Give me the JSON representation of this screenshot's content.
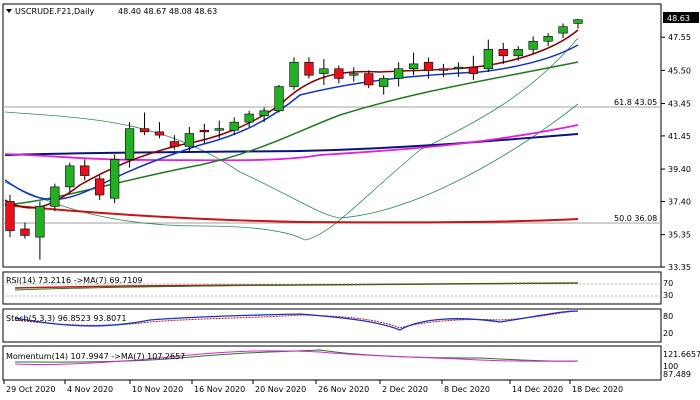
{
  "header": {
    "symbol_label": "USCRUDE.F21,Daily",
    "ohlc_values": "48.40 48.67 48.08 48.63",
    "collapse_icon": "triangle-down-icon"
  },
  "main_panel": {
    "price_badge": "48.63",
    "fib_high": "61.8 43.05",
    "fib_mid": "50.0 36.08"
  },
  "rsi_panel": {
    "label": "RSI(14) 73.2116  ->MA(7) 69.7109"
  },
  "stoch_panel": {
    "label": "Stoch(5,3,3) 96.8523 93.8071"
  },
  "momentum_panel": {
    "label": "Momentum(14) 107.9947  ->MA(7) 107.2657"
  },
  "colors": {
    "bull_candle": "#22b022",
    "bear_candle": "#e8101a",
    "ma_fast": "#8b0000",
    "ma_mid": "#1432c8",
    "ma_slow": "#1e7a1e",
    "ma_magenta": "#e020e0",
    "ma_navy": "#0a1478",
    "ma_red_long": "#c81414",
    "bollinger": "#2e8b57"
  },
  "chart_data": {
    "type": "candlestick",
    "title": "USCRUDE.F21,Daily",
    "x_tick_labels": [
      "29 Oct 2020",
      "4 Nov 2020",
      "10 Nov 2020",
      "16 Nov 2020",
      "20 Nov 2020",
      "26 Nov 2020",
      "2 Dec 2020",
      "8 Dec 2020",
      "14 Dec 2020",
      "18 Dec 2020"
    ],
    "y_tick_labels": [
      "48.63",
      "47.55",
      "45.50",
      "43.45",
      "41.45",
      "39.40",
      "37.40",
      "35.35",
      "33.35"
    ],
    "ylim": [
      33.35,
      49.6
    ],
    "candles": [
      {
        "o": 37.4,
        "h": 37.8,
        "l": 35.2,
        "c": 35.6
      },
      {
        "o": 35.7,
        "h": 36.1,
        "l": 35.1,
        "c": 35.3
      },
      {
        "o": 35.2,
        "h": 37.4,
        "l": 33.8,
        "c": 37.1
      },
      {
        "o": 37.1,
        "h": 38.5,
        "l": 36.8,
        "c": 38.3
      },
      {
        "o": 38.3,
        "h": 39.8,
        "l": 38.0,
        "c": 39.6
      },
      {
        "o": 39.6,
        "h": 40.0,
        "l": 38.7,
        "c": 39.0
      },
      {
        "o": 38.8,
        "h": 39.0,
        "l": 37.5,
        "c": 37.8
      },
      {
        "o": 37.6,
        "h": 40.3,
        "l": 37.3,
        "c": 40.0
      },
      {
        "o": 40.0,
        "h": 42.3,
        "l": 39.5,
        "c": 41.9
      },
      {
        "o": 41.9,
        "h": 42.9,
        "l": 41.5,
        "c": 41.7
      },
      {
        "o": 41.7,
        "h": 42.3,
        "l": 41.3,
        "c": 41.5
      },
      {
        "o": 41.1,
        "h": 41.5,
        "l": 40.6,
        "c": 40.8
      },
      {
        "o": 40.8,
        "h": 42.0,
        "l": 40.5,
        "c": 41.6
      },
      {
        "o": 41.8,
        "h": 42.2,
        "l": 41.0,
        "c": 41.7
      },
      {
        "o": 41.8,
        "h": 42.4,
        "l": 41.3,
        "c": 41.9
      },
      {
        "o": 41.8,
        "h": 42.6,
        "l": 41.5,
        "c": 42.3
      },
      {
        "o": 42.3,
        "h": 43.0,
        "l": 42.0,
        "c": 42.8
      },
      {
        "o": 42.7,
        "h": 43.2,
        "l": 42.3,
        "c": 43.0
      },
      {
        "o": 43.0,
        "h": 44.6,
        "l": 42.9,
        "c": 44.5
      },
      {
        "o": 44.5,
        "h": 46.3,
        "l": 44.3,
        "c": 46.0
      },
      {
        "o": 46.0,
        "h": 46.3,
        "l": 45.0,
        "c": 45.2
      },
      {
        "o": 45.3,
        "h": 46.2,
        "l": 44.6,
        "c": 45.6
      },
      {
        "o": 45.6,
        "h": 45.8,
        "l": 44.7,
        "c": 45.0
      },
      {
        "o": 45.2,
        "h": 45.7,
        "l": 44.8,
        "c": 45.3
      },
      {
        "o": 45.3,
        "h": 45.5,
        "l": 44.4,
        "c": 44.6
      },
      {
        "o": 44.5,
        "h": 45.2,
        "l": 44.0,
        "c": 45.0
      },
      {
        "o": 45.0,
        "h": 46.0,
        "l": 44.5,
        "c": 45.6
      },
      {
        "o": 45.6,
        "h": 46.6,
        "l": 45.2,
        "c": 45.9
      },
      {
        "o": 46.0,
        "h": 46.3,
        "l": 45.0,
        "c": 45.5
      },
      {
        "o": 45.6,
        "h": 45.9,
        "l": 45.1,
        "c": 45.5
      },
      {
        "o": 45.6,
        "h": 46.0,
        "l": 45.1,
        "c": 45.7
      },
      {
        "o": 45.7,
        "h": 46.4,
        "l": 44.9,
        "c": 45.3
      },
      {
        "o": 45.6,
        "h": 47.4,
        "l": 45.4,
        "c": 46.8
      },
      {
        "o": 46.8,
        "h": 47.2,
        "l": 45.9,
        "c": 46.4
      },
      {
        "o": 46.4,
        "h": 47.0,
        "l": 46.1,
        "c": 46.8
      },
      {
        "o": 46.8,
        "h": 47.6,
        "l": 46.5,
        "c": 47.3
      },
      {
        "o": 47.3,
        "h": 47.8,
        "l": 47.0,
        "c": 47.6
      },
      {
        "o": 47.8,
        "h": 48.4,
        "l": 47.5,
        "c": 48.2
      },
      {
        "o": 48.4,
        "h": 48.67,
        "l": 48.08,
        "c": 48.63
      }
    ],
    "rsi_levels": [
      "70",
      "30"
    ],
    "stoch_levels": [
      "80",
      "20"
    ],
    "momentum_levels": [
      "121.6657",
      "100",
      "87.489"
    ],
    "last_rsi": 73.2116,
    "last_stoch": 96.8523,
    "last_momentum": 107.9947
  }
}
